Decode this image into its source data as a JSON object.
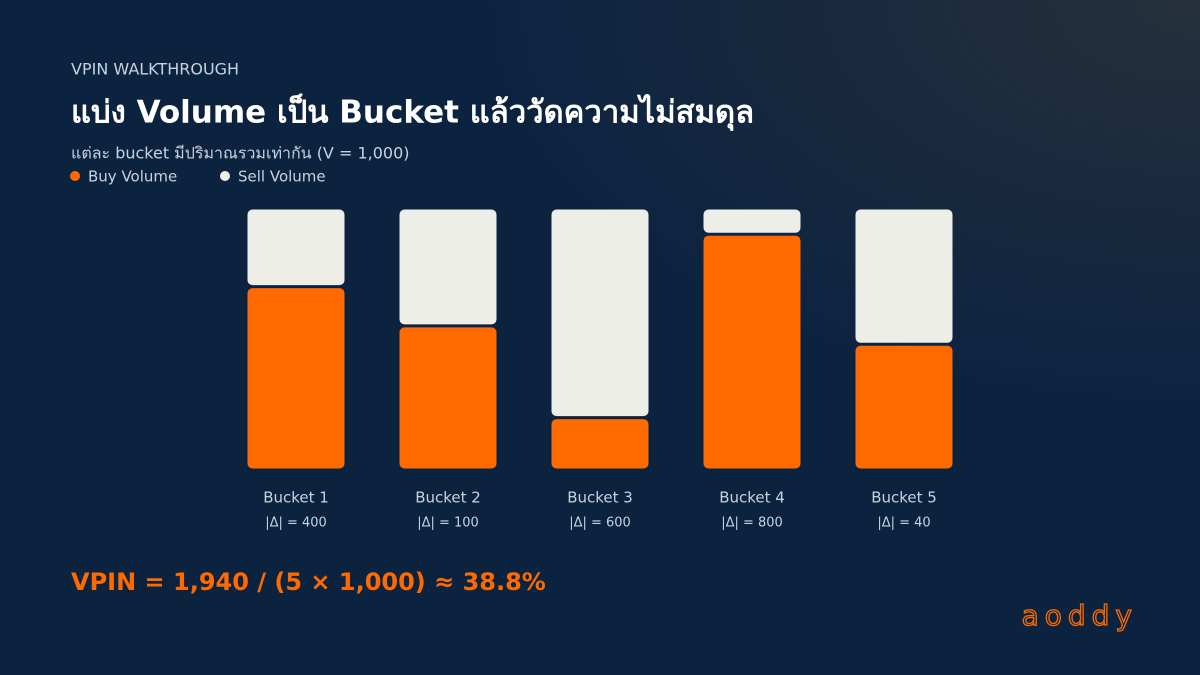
{
  "kicker": "VPIN WALKTHROUGH",
  "chart_data": {
    "type": "stacked_bar",
    "title": "แบ่ง Volume เป็น Bucket แล้ววัดความไม่สมดุล",
    "subtitle": "แต่ละ bucket มีปริมาณรวมเท่ากัน (V = 1,000)",
    "categories": [
      "Bucket 1",
      "Bucket 2",
      "Bucket 3",
      "Bucket 4",
      "Bucket 5"
    ],
    "category_notes": [
      "|Δ| = 400",
      "|Δ| = 100",
      "|Δ| = 600",
      "|Δ| = 800",
      "|Δ| = 40"
    ],
    "series": [
      {
        "name": "Buy Volume",
        "color": "#ff6a00",
        "values": [
          700,
          550,
          200,
          900,
          480
        ]
      },
      {
        "name": "Sell Volume",
        "color": "#eeeee8",
        "values": [
          300,
          450,
          800,
          100,
          520
        ]
      }
    ],
    "ylim": [
      0,
      1000
    ],
    "legend": "top-left",
    "formula": "VPIN = 1,940 / (5 × 1,000) ≈ 38.8%"
  },
  "brand": "aoddy"
}
